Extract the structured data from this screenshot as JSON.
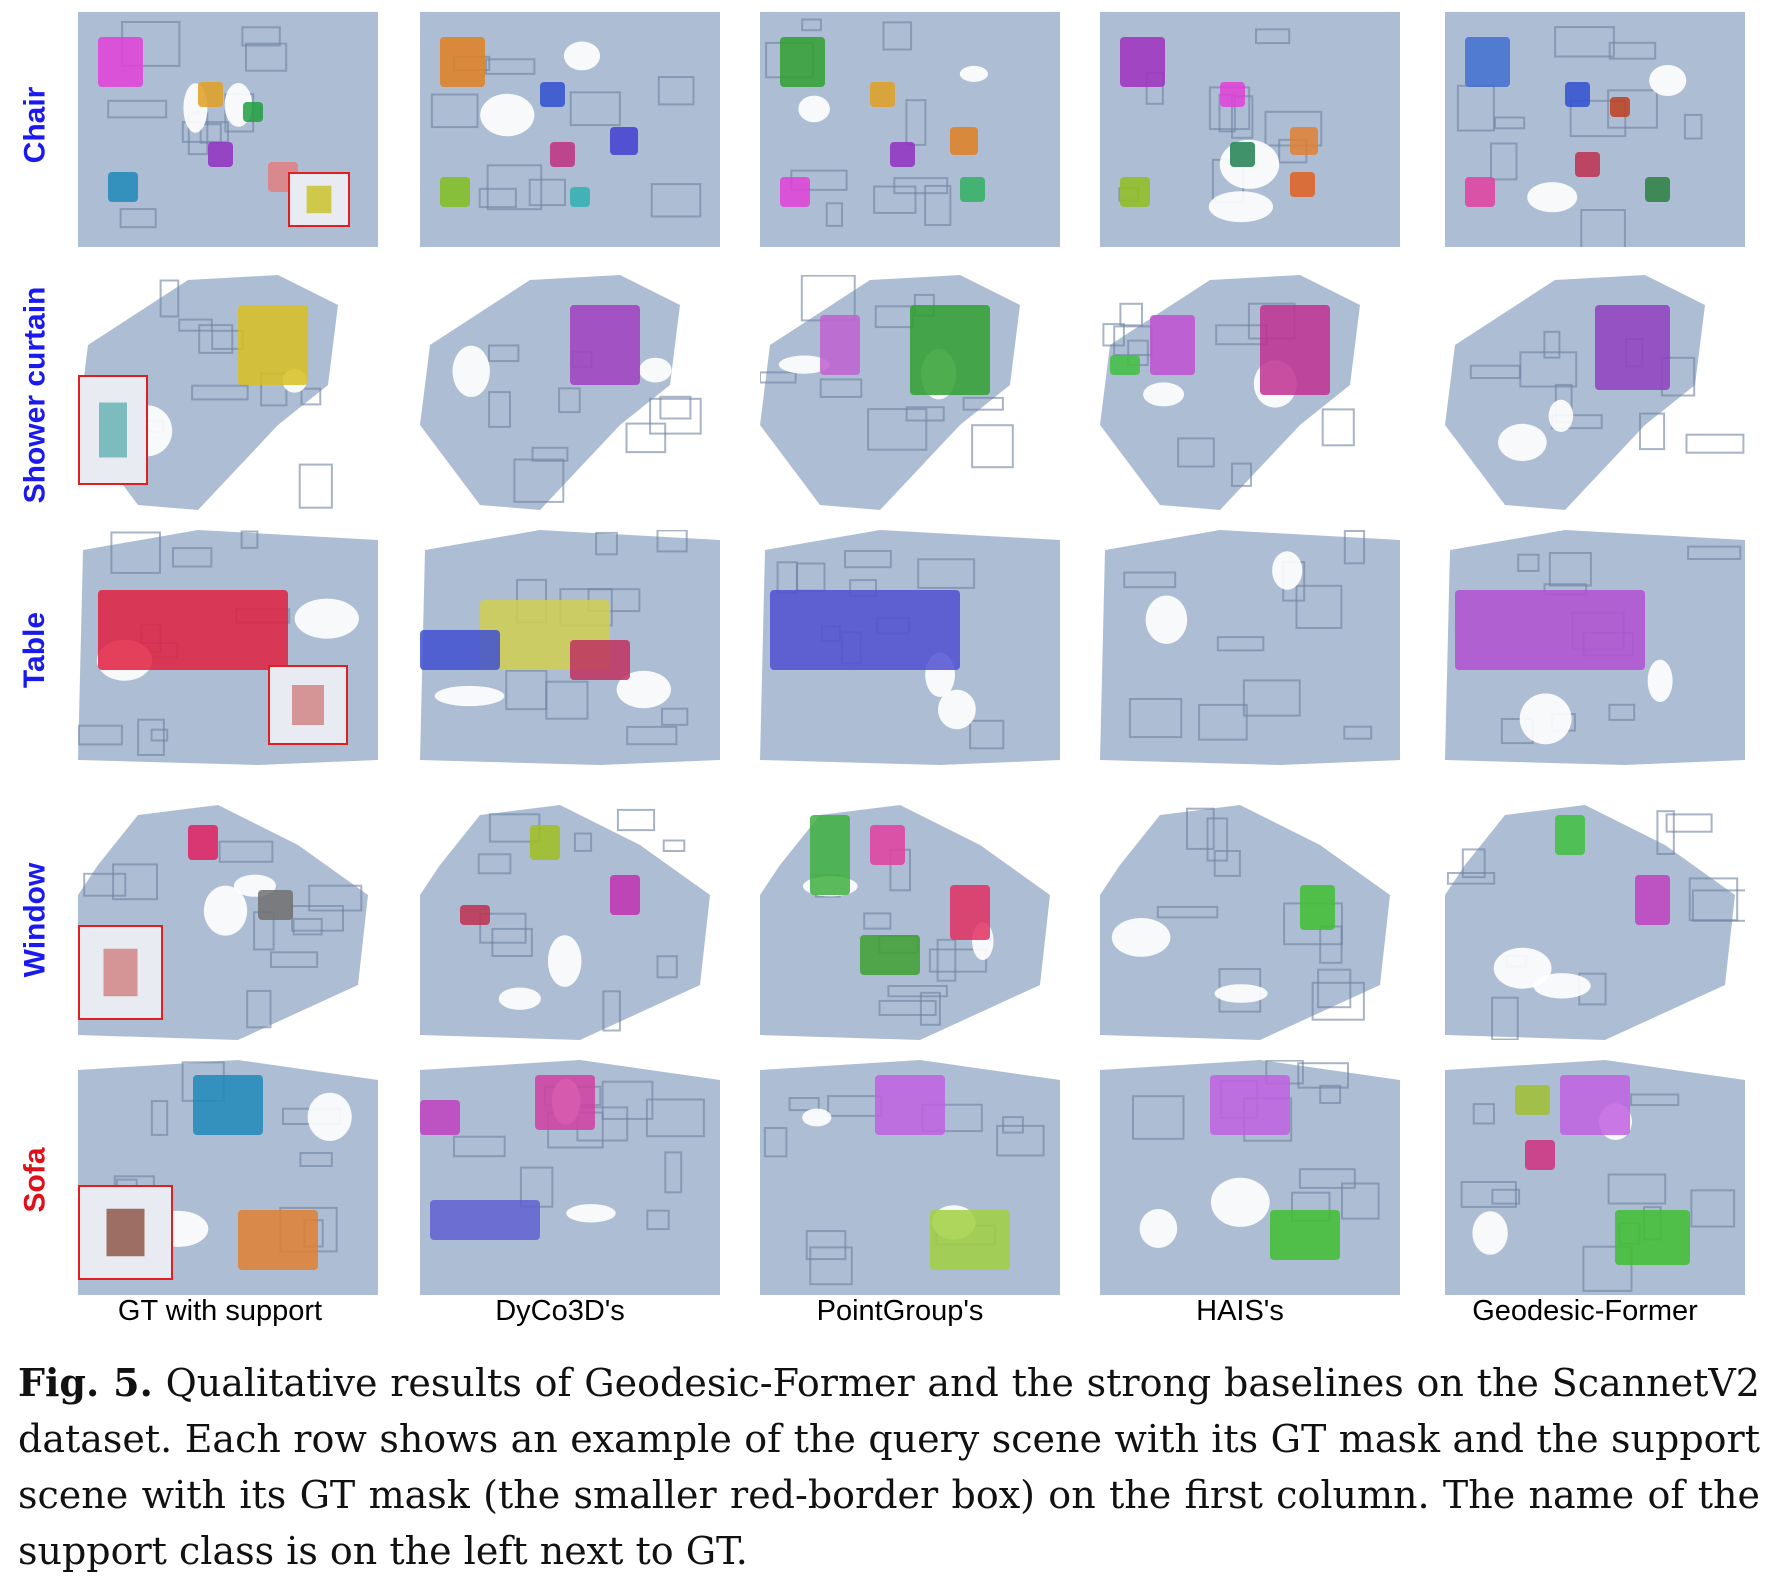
{
  "figure": {
    "row_labels": [
      {
        "text": "Chair",
        "color": "#1a1aee"
      },
      {
        "text": "Shower curtain",
        "color": "#1a1aee"
      },
      {
        "text": "Table",
        "color": "#1a1aee"
      },
      {
        "text": "Window",
        "color": "#1a1aee"
      },
      {
        "text": "Sofa",
        "color": "#e0101a"
      }
    ],
    "column_labels": [
      "GT with support",
      "DyCo3D's",
      "PointGroup's",
      "HAIS's",
      "Geodesic-Former"
    ],
    "support_box_color": "#e02020",
    "scene_color": "#9fb3cc"
  },
  "caption": {
    "label": "Fig. 5.",
    "text": "Qualitative results of Geodesic-Former and the strong baselines on the ScannetV2 dataset. Each row shows an example of the query scene with its GT mask and the support scene with its GT mask (the smaller red-border box) on the first column. The name of the support class is on the left next to GT."
  }
}
